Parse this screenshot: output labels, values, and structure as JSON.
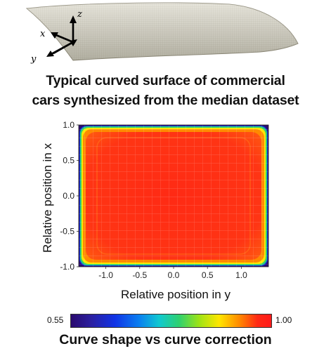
{
  "figure": {
    "top_panel": {
      "axes_labels": {
        "x": "x",
        "y": "y",
        "z": "z"
      }
    },
    "title_lines": [
      "Typical curved surface of commercial",
      "cars synthesized from the median dataset"
    ],
    "colorbar": {
      "min_label": "0.55",
      "max_label": "1.00"
    },
    "caption": "Curve shape vs curve correction"
  },
  "chart_data": {
    "type": "heatmap",
    "xlabel": "Relative position in y",
    "ylabel": "Relative position in x",
    "xlim": [
      -1.4,
      1.4
    ],
    "ylim": [
      -1.0,
      1.0
    ],
    "x_ticks": [
      "-1.0",
      "-0.5",
      "0.0",
      "0.5",
      "1.0"
    ],
    "y_ticks": [
      "1.0",
      "0.5",
      "0.0",
      "-0.5",
      "-1.0"
    ],
    "grid": true,
    "value_range": [
      0.55,
      1.0
    ],
    "colors": {
      "interior": "#ff2a14",
      "edge_orange": "#ff8a00",
      "edge_yellow": "#ffe600",
      "edge_green": "#2fd16f",
      "edge_blue": "#1033e6",
      "corner_dark": "#2a0a6e"
    }
  }
}
